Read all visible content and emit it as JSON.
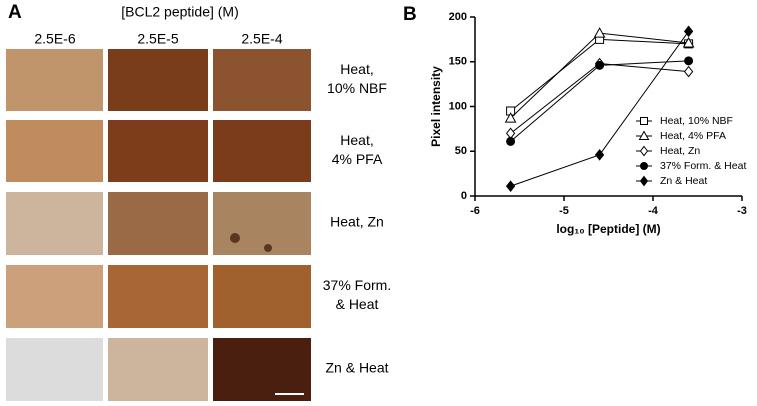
{
  "panel_a": {
    "label": "A",
    "title": "[BCL2 peptide] (M)",
    "columns": [
      "2.5E-6",
      "2.5E-5",
      "2.5E-4"
    ],
    "rows": [
      [
        "Heat,",
        "10% NBF"
      ],
      [
        "Heat,",
        "4% PFA"
      ],
      [
        "Heat, Zn"
      ],
      [
        "37% Form.",
        "& Heat"
      ],
      [
        "Zn & Heat"
      ]
    ]
  },
  "chart_data": {
    "type": "line",
    "label": "B",
    "x_label": "log₁₀ [Peptide] (M)",
    "y_label": "Pixel intensity",
    "x": [
      -5.6,
      -4.6,
      -3.6
    ],
    "series": [
      {
        "name": "Heat, 10% NBF",
        "color": "#000000",
        "marker": "square",
        "filled": false,
        "values": [
          95,
          175,
          170
        ]
      },
      {
        "name": "Heat, 4% PFA",
        "color": "#000000",
        "marker": "triangle",
        "filled": false,
        "values": [
          87,
          182,
          171
        ]
      },
      {
        "name": "Heat, Zn",
        "color": "#000000",
        "marker": "diamond",
        "filled": false,
        "values": [
          70,
          148,
          139
        ]
      },
      {
        "name": "37% Form. & Heat",
        "color": "#000000",
        "marker": "circle",
        "filled": true,
        "values": [
          61,
          146,
          151
        ]
      },
      {
        "name": "Zn & Heat",
        "color": "#000000",
        "marker": "diamond",
        "filled": true,
        "values": [
          11,
          46,
          184
        ]
      }
    ],
    "xlim": [
      -6,
      -3
    ],
    "xticks": [
      -6,
      -5,
      -4,
      -3
    ],
    "ylim": [
      0,
      200
    ],
    "yticks": [
      0,
      50,
      100,
      150,
      200
    ],
    "grid": false,
    "legend": "right"
  }
}
